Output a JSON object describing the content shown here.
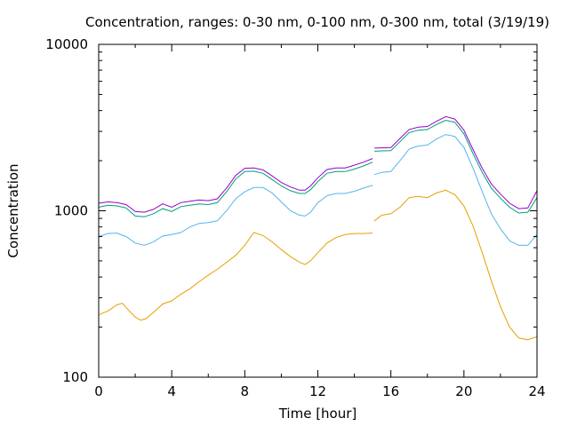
{
  "chart_data": {
    "type": "line",
    "title": "Concentration, ranges: 0-30 nm, 0-100 nm, 0-300 nm, total (3/19/19)",
    "xlabel": "Time [hour]",
    "ylabel": "Concentration",
    "xlim": [
      0,
      24
    ],
    "ylim": [
      100,
      10000
    ],
    "y_scale": "log",
    "grid": false,
    "legend": "none",
    "x_ticks": [
      0,
      4,
      8,
      12,
      16,
      20,
      24
    ],
    "x_tick_labels": [
      "0",
      "4",
      "8",
      "12",
      "16",
      "20",
      "24"
    ],
    "y_ticks": [
      100,
      1000,
      10000
    ],
    "y_tick_labels": [
      "100",
      "1000",
      "10000"
    ],
    "y_minor_ticks": [
      200,
      300,
      400,
      500,
      600,
      700,
      800,
      900,
      2000,
      3000,
      4000,
      5000,
      6000,
      7000,
      8000,
      9000
    ],
    "series": [
      {
        "color": "#e69f00",
        "points": [
          [
            0,
            237
          ],
          [
            0.5,
            250
          ],
          [
            1,
            272
          ],
          [
            1.3,
            278
          ],
          [
            1.6,
            255
          ],
          [
            2,
            230
          ],
          [
            2.3,
            220
          ],
          [
            2.6,
            225
          ],
          [
            3,
            245
          ],
          [
            3.5,
            275
          ],
          [
            4,
            288
          ],
          [
            4.5,
            315
          ],
          [
            5,
            340
          ],
          [
            5.5,
            375
          ],
          [
            6,
            410
          ],
          [
            6.5,
            445
          ],
          [
            7,
            490
          ],
          [
            7.5,
            540
          ],
          [
            8,
            620
          ],
          [
            8.5,
            740
          ],
          [
            9,
            710
          ],
          [
            9.5,
            650
          ],
          [
            10,
            585
          ],
          [
            10.5,
            530
          ],
          [
            11,
            490
          ],
          [
            11.3,
            475
          ],
          [
            11.6,
            500
          ],
          [
            12,
            560
          ],
          [
            12.5,
            640
          ],
          [
            13,
            690
          ],
          [
            13.5,
            720
          ],
          [
            14,
            730
          ],
          [
            14.5,
            730
          ],
          [
            15,
            735
          ],
          [
            15.05,
            null
          ],
          [
            15.1,
            870
          ],
          [
            15.5,
            940
          ],
          [
            16,
            960
          ],
          [
            16.5,
            1050
          ],
          [
            17,
            1200
          ],
          [
            17.5,
            1220
          ],
          [
            18,
            1200
          ],
          [
            18.5,
            1280
          ],
          [
            19,
            1330
          ],
          [
            19.5,
            1250
          ],
          [
            20,
            1070
          ],
          [
            20.5,
            810
          ],
          [
            21,
            560
          ],
          [
            21.5,
            380
          ],
          [
            22,
            265
          ],
          [
            22.5,
            200
          ],
          [
            23,
            172
          ],
          [
            23.5,
            168
          ],
          [
            24,
            175
          ]
        ]
      },
      {
        "color": "#56b4e9",
        "points": [
          [
            0,
            700
          ],
          [
            0.5,
            730
          ],
          [
            1,
            735
          ],
          [
            1.5,
            700
          ],
          [
            2,
            640
          ],
          [
            2.5,
            620
          ],
          [
            3,
            650
          ],
          [
            3.5,
            705
          ],
          [
            4,
            720
          ],
          [
            4.5,
            740
          ],
          [
            5,
            800
          ],
          [
            5.5,
            840
          ],
          [
            6,
            850
          ],
          [
            6.5,
            870
          ],
          [
            7,
            1000
          ],
          [
            7.5,
            1180
          ],
          [
            8,
            1300
          ],
          [
            8.5,
            1380
          ],
          [
            9,
            1380
          ],
          [
            9.5,
            1280
          ],
          [
            10,
            1130
          ],
          [
            10.5,
            1000
          ],
          [
            11,
            940
          ],
          [
            11.3,
            930
          ],
          [
            11.6,
            980
          ],
          [
            12,
            1120
          ],
          [
            12.5,
            1230
          ],
          [
            13,
            1270
          ],
          [
            13.5,
            1270
          ],
          [
            14,
            1310
          ],
          [
            14.5,
            1370
          ],
          [
            15,
            1420
          ],
          [
            15.05,
            null
          ],
          [
            15.1,
            1650
          ],
          [
            15.5,
            1700
          ],
          [
            16,
            1720
          ],
          [
            16.5,
            2000
          ],
          [
            17,
            2350
          ],
          [
            17.5,
            2450
          ],
          [
            18,
            2480
          ],
          [
            18.5,
            2700
          ],
          [
            19,
            2870
          ],
          [
            19.5,
            2800
          ],
          [
            20,
            2400
          ],
          [
            20.5,
            1800
          ],
          [
            21,
            1300
          ],
          [
            21.5,
            960
          ],
          [
            22,
            780
          ],
          [
            22.5,
            660
          ],
          [
            23,
            620
          ],
          [
            23.5,
            620
          ],
          [
            24,
            720
          ]
        ]
      },
      {
        "color": "#009e73",
        "points": [
          [
            0,
            1050
          ],
          [
            0.5,
            1080
          ],
          [
            1,
            1070
          ],
          [
            1.5,
            1040
          ],
          [
            2,
            930
          ],
          [
            2.5,
            920
          ],
          [
            3,
            960
          ],
          [
            3.5,
            1030
          ],
          [
            4,
            990
          ],
          [
            4.5,
            1060
          ],
          [
            5,
            1080
          ],
          [
            5.5,
            1100
          ],
          [
            6,
            1090
          ],
          [
            6.5,
            1120
          ],
          [
            7,
            1300
          ],
          [
            7.5,
            1550
          ],
          [
            8,
            1720
          ],
          [
            8.5,
            1730
          ],
          [
            9,
            1680
          ],
          [
            9.5,
            1540
          ],
          [
            10,
            1410
          ],
          [
            10.5,
            1320
          ],
          [
            11,
            1270
          ],
          [
            11.3,
            1270
          ],
          [
            11.6,
            1340
          ],
          [
            12,
            1500
          ],
          [
            12.5,
            1680
          ],
          [
            13,
            1720
          ],
          [
            13.5,
            1720
          ],
          [
            14,
            1780
          ],
          [
            14.5,
            1860
          ],
          [
            15,
            1960
          ],
          [
            15.05,
            null
          ],
          [
            15.1,
            2280
          ],
          [
            15.5,
            2290
          ],
          [
            16,
            2300
          ],
          [
            16.5,
            2600
          ],
          [
            17,
            2950
          ],
          [
            17.5,
            3050
          ],
          [
            18,
            3080
          ],
          [
            18.5,
            3300
          ],
          [
            19,
            3500
          ],
          [
            19.5,
            3400
          ],
          [
            20,
            2900
          ],
          [
            20.5,
            2200
          ],
          [
            21,
            1700
          ],
          [
            21.5,
            1370
          ],
          [
            22,
            1190
          ],
          [
            22.5,
            1050
          ],
          [
            23,
            970
          ],
          [
            23.5,
            980
          ],
          [
            24,
            1200
          ]
        ]
      },
      {
        "color": "#9400d3",
        "points": [
          [
            0,
            1110
          ],
          [
            0.5,
            1130
          ],
          [
            1,
            1120
          ],
          [
            1.5,
            1090
          ],
          [
            2,
            990
          ],
          [
            2.5,
            980
          ],
          [
            3,
            1020
          ],
          [
            3.5,
            1100
          ],
          [
            4,
            1050
          ],
          [
            4.5,
            1120
          ],
          [
            5,
            1140
          ],
          [
            5.5,
            1160
          ],
          [
            6,
            1150
          ],
          [
            6.5,
            1180
          ],
          [
            7,
            1370
          ],
          [
            7.5,
            1630
          ],
          [
            8,
            1800
          ],
          [
            8.5,
            1810
          ],
          [
            9,
            1760
          ],
          [
            9.5,
            1620
          ],
          [
            10,
            1480
          ],
          [
            10.5,
            1390
          ],
          [
            11,
            1330
          ],
          [
            11.3,
            1330
          ],
          [
            11.6,
            1410
          ],
          [
            12,
            1580
          ],
          [
            12.5,
            1770
          ],
          [
            13,
            1810
          ],
          [
            13.5,
            1810
          ],
          [
            14,
            1880
          ],
          [
            14.5,
            1960
          ],
          [
            15,
            2060
          ],
          [
            15.05,
            null
          ],
          [
            15.1,
            2380
          ],
          [
            15.5,
            2390
          ],
          [
            16,
            2400
          ],
          [
            16.5,
            2720
          ],
          [
            17,
            3080
          ],
          [
            17.5,
            3180
          ],
          [
            18,
            3210
          ],
          [
            18.5,
            3450
          ],
          [
            19,
            3680
          ],
          [
            19.5,
            3560
          ],
          [
            20,
            3050
          ],
          [
            20.5,
            2330
          ],
          [
            21,
            1800
          ],
          [
            21.5,
            1450
          ],
          [
            22,
            1260
          ],
          [
            22.5,
            1110
          ],
          [
            23,
            1030
          ],
          [
            23.5,
            1040
          ],
          [
            24,
            1320
          ]
        ]
      }
    ]
  }
}
